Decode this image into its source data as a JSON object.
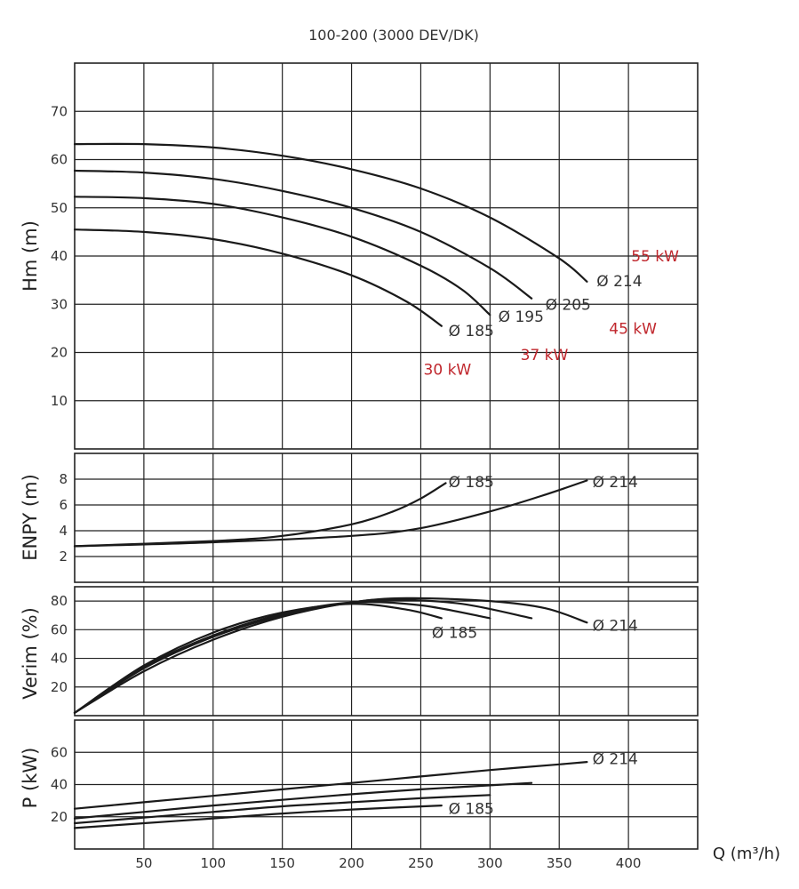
{
  "chart_data": {
    "type": "line",
    "title": "100-200 (3000 DEV/DK)",
    "xlabel": "Q (m³/h)",
    "xlim": [
      0,
      450
    ],
    "x_ticks": [
      "50",
      "100",
      "150",
      "200",
      "250",
      "300",
      "350",
      "400"
    ],
    "grid": true,
    "panels": [
      {
        "id": "hm",
        "ylabel": "Hm (m)",
        "ylim": [
          0,
          80
        ],
        "y_ticks": [
          10,
          20,
          30,
          40,
          50,
          60,
          70
        ],
        "series": [
          {
            "name": "Ø 185",
            "points": [
              [
                0,
                45.5
              ],
              [
                50,
                45
              ],
              [
                100,
                43.5
              ],
              [
                150,
                40.5
              ],
              [
                200,
                36
              ],
              [
                240,
                30.5
              ],
              [
                265,
                25.5
              ]
            ]
          },
          {
            "name": "Ø 195",
            "points": [
              [
                0,
                52.3
              ],
              [
                50,
                52
              ],
              [
                100,
                50.8
              ],
              [
                150,
                48
              ],
              [
                200,
                44
              ],
              [
                250,
                38
              ],
              [
                280,
                33
              ],
              [
                300,
                27.8
              ]
            ]
          },
          {
            "name": "Ø 205",
            "points": [
              [
                0,
                57.7
              ],
              [
                50,
                57.3
              ],
              [
                100,
                56
              ],
              [
                150,
                53.5
              ],
              [
                200,
                50
              ],
              [
                250,
                45
              ],
              [
                300,
                37.5
              ],
              [
                330,
                31.2
              ]
            ]
          },
          {
            "name": "Ø 214",
            "points": [
              [
                0,
                63.2
              ],
              [
                50,
                63.2
              ],
              [
                100,
                62.5
              ],
              [
                150,
                60.8
              ],
              [
                200,
                58
              ],
              [
                250,
                54
              ],
              [
                300,
                48
              ],
              [
                350,
                39.5
              ],
              [
                370,
                34.7
              ]
            ]
          }
        ],
        "series_labels": [
          {
            "text": "Ø 185",
            "x": 270,
            "y": 24.5
          },
          {
            "text": "Ø 195",
            "x": 306,
            "y": 27.5
          },
          {
            "text": "Ø 205",
            "x": 340,
            "y": 30
          },
          {
            "text": "Ø 214",
            "x": 377,
            "y": 34.8
          }
        ],
        "power_labels": [
          {
            "text": "30 kW",
            "x": 252,
            "y": 16.5
          },
          {
            "text": "37 kW",
            "x": 322,
            "y": 19.5
          },
          {
            "text": "45 kW",
            "x": 386,
            "y": 25
          },
          {
            "text": "55 kW",
            "x": 402,
            "y": 40
          }
        ]
      },
      {
        "id": "enpy",
        "ylabel": "ENPY (m)",
        "ylim": [
          0,
          10
        ],
        "y_ticks": [
          2,
          4,
          6,
          8
        ],
        "series": [
          {
            "name": "Ø 185",
            "points": [
              [
                0,
                2.8
              ],
              [
                100,
                3.2
              ],
              [
                150,
                3.6
              ],
              [
                200,
                4.5
              ],
              [
                230,
                5.5
              ],
              [
                250,
                6.5
              ],
              [
                268,
                7.7
              ]
            ]
          },
          {
            "name": "Ø 214",
            "points": [
              [
                0,
                2.8
              ],
              [
                100,
                3.1
              ],
              [
                200,
                3.6
              ],
              [
                250,
                4.2
              ],
              [
                300,
                5.5
              ],
              [
                340,
                6.8
              ],
              [
                370,
                7.9
              ]
            ]
          }
        ],
        "series_labels": [
          {
            "text": "Ø 185",
            "x": 270,
            "y": 7.8
          },
          {
            "text": "Ø 214",
            "x": 374,
            "y": 7.8
          }
        ]
      },
      {
        "id": "verim",
        "ylabel": "Verim (%)",
        "ylim": [
          0,
          90
        ],
        "y_ticks": [
          20,
          40,
          60,
          80
        ],
        "series": [
          {
            "name": "Ø 185",
            "points": [
              [
                0,
                2
              ],
              [
                50,
                35
              ],
              [
                100,
                58
              ],
              [
                150,
                72
              ],
              [
                200,
                78
              ],
              [
                240,
                74
              ],
              [
                265,
                68
              ]
            ]
          },
          {
            "name": "Ø 195",
            "points": [
              [
                0,
                2
              ],
              [
                50,
                34
              ],
              [
                100,
                56
              ],
              [
                150,
                71
              ],
              [
                200,
                79
              ],
              [
                250,
                77
              ],
              [
                300,
                68
              ]
            ]
          },
          {
            "name": "Ø 205",
            "points": [
              [
                0,
                2
              ],
              [
                50,
                33
              ],
              [
                100,
                55
              ],
              [
                150,
                70
              ],
              [
                200,
                79
              ],
              [
                230,
                81
              ],
              [
                280,
                78
              ],
              [
                330,
                68
              ]
            ]
          },
          {
            "name": "Ø 214",
            "points": [
              [
                0,
                2
              ],
              [
                50,
                31
              ],
              [
                100,
                53
              ],
              [
                150,
                69
              ],
              [
                200,
                79
              ],
              [
                240,
                82
              ],
              [
                300,
                80
              ],
              [
                340,
                75
              ],
              [
                370,
                65
              ]
            ]
          }
        ],
        "series_labels": [
          {
            "text": "Ø 185",
            "x": 258,
            "y": 58
          },
          {
            "text": "Ø 214",
            "x": 374,
            "y": 63
          }
        ]
      },
      {
        "id": "p",
        "ylabel": "P (kW)",
        "ylim": [
          0,
          80
        ],
        "y_ticks": [
          20,
          40,
          60
        ],
        "series": [
          {
            "name": "Ø 185",
            "points": [
              [
                0,
                13
              ],
              [
                50,
                16
              ],
              [
                100,
                19
              ],
              [
                150,
                22
              ],
              [
                200,
                24.5
              ],
              [
                265,
                27
              ]
            ]
          },
          {
            "name": "Ø 195",
            "points": [
              [
                0,
                16
              ],
              [
                50,
                19.5
              ],
              [
                100,
                23
              ],
              [
                150,
                26.5
              ],
              [
                200,
                29
              ],
              [
                250,
                31.5
              ],
              [
                300,
                33.5
              ]
            ]
          },
          {
            "name": "Ø 205",
            "points": [
              [
                0,
                19
              ],
              [
                50,
                23
              ],
              [
                100,
                27
              ],
              [
                150,
                30.5
              ],
              [
                200,
                34
              ],
              [
                250,
                37
              ],
              [
                300,
                39.5
              ],
              [
                330,
                41
              ]
            ]
          },
          {
            "name": "Ø 214",
            "points": [
              [
                0,
                25
              ],
              [
                50,
                29
              ],
              [
                100,
                33
              ],
              [
                150,
                37
              ],
              [
                200,
                41
              ],
              [
                250,
                45
              ],
              [
                300,
                49
              ],
              [
                350,
                52.5
              ],
              [
                370,
                54
              ]
            ]
          }
        ],
        "series_labels": [
          {
            "text": "Ø 214",
            "x": 374,
            "y": 56
          },
          {
            "text": "Ø 185",
            "x": 270,
            "y": 25
          }
        ]
      }
    ]
  }
}
